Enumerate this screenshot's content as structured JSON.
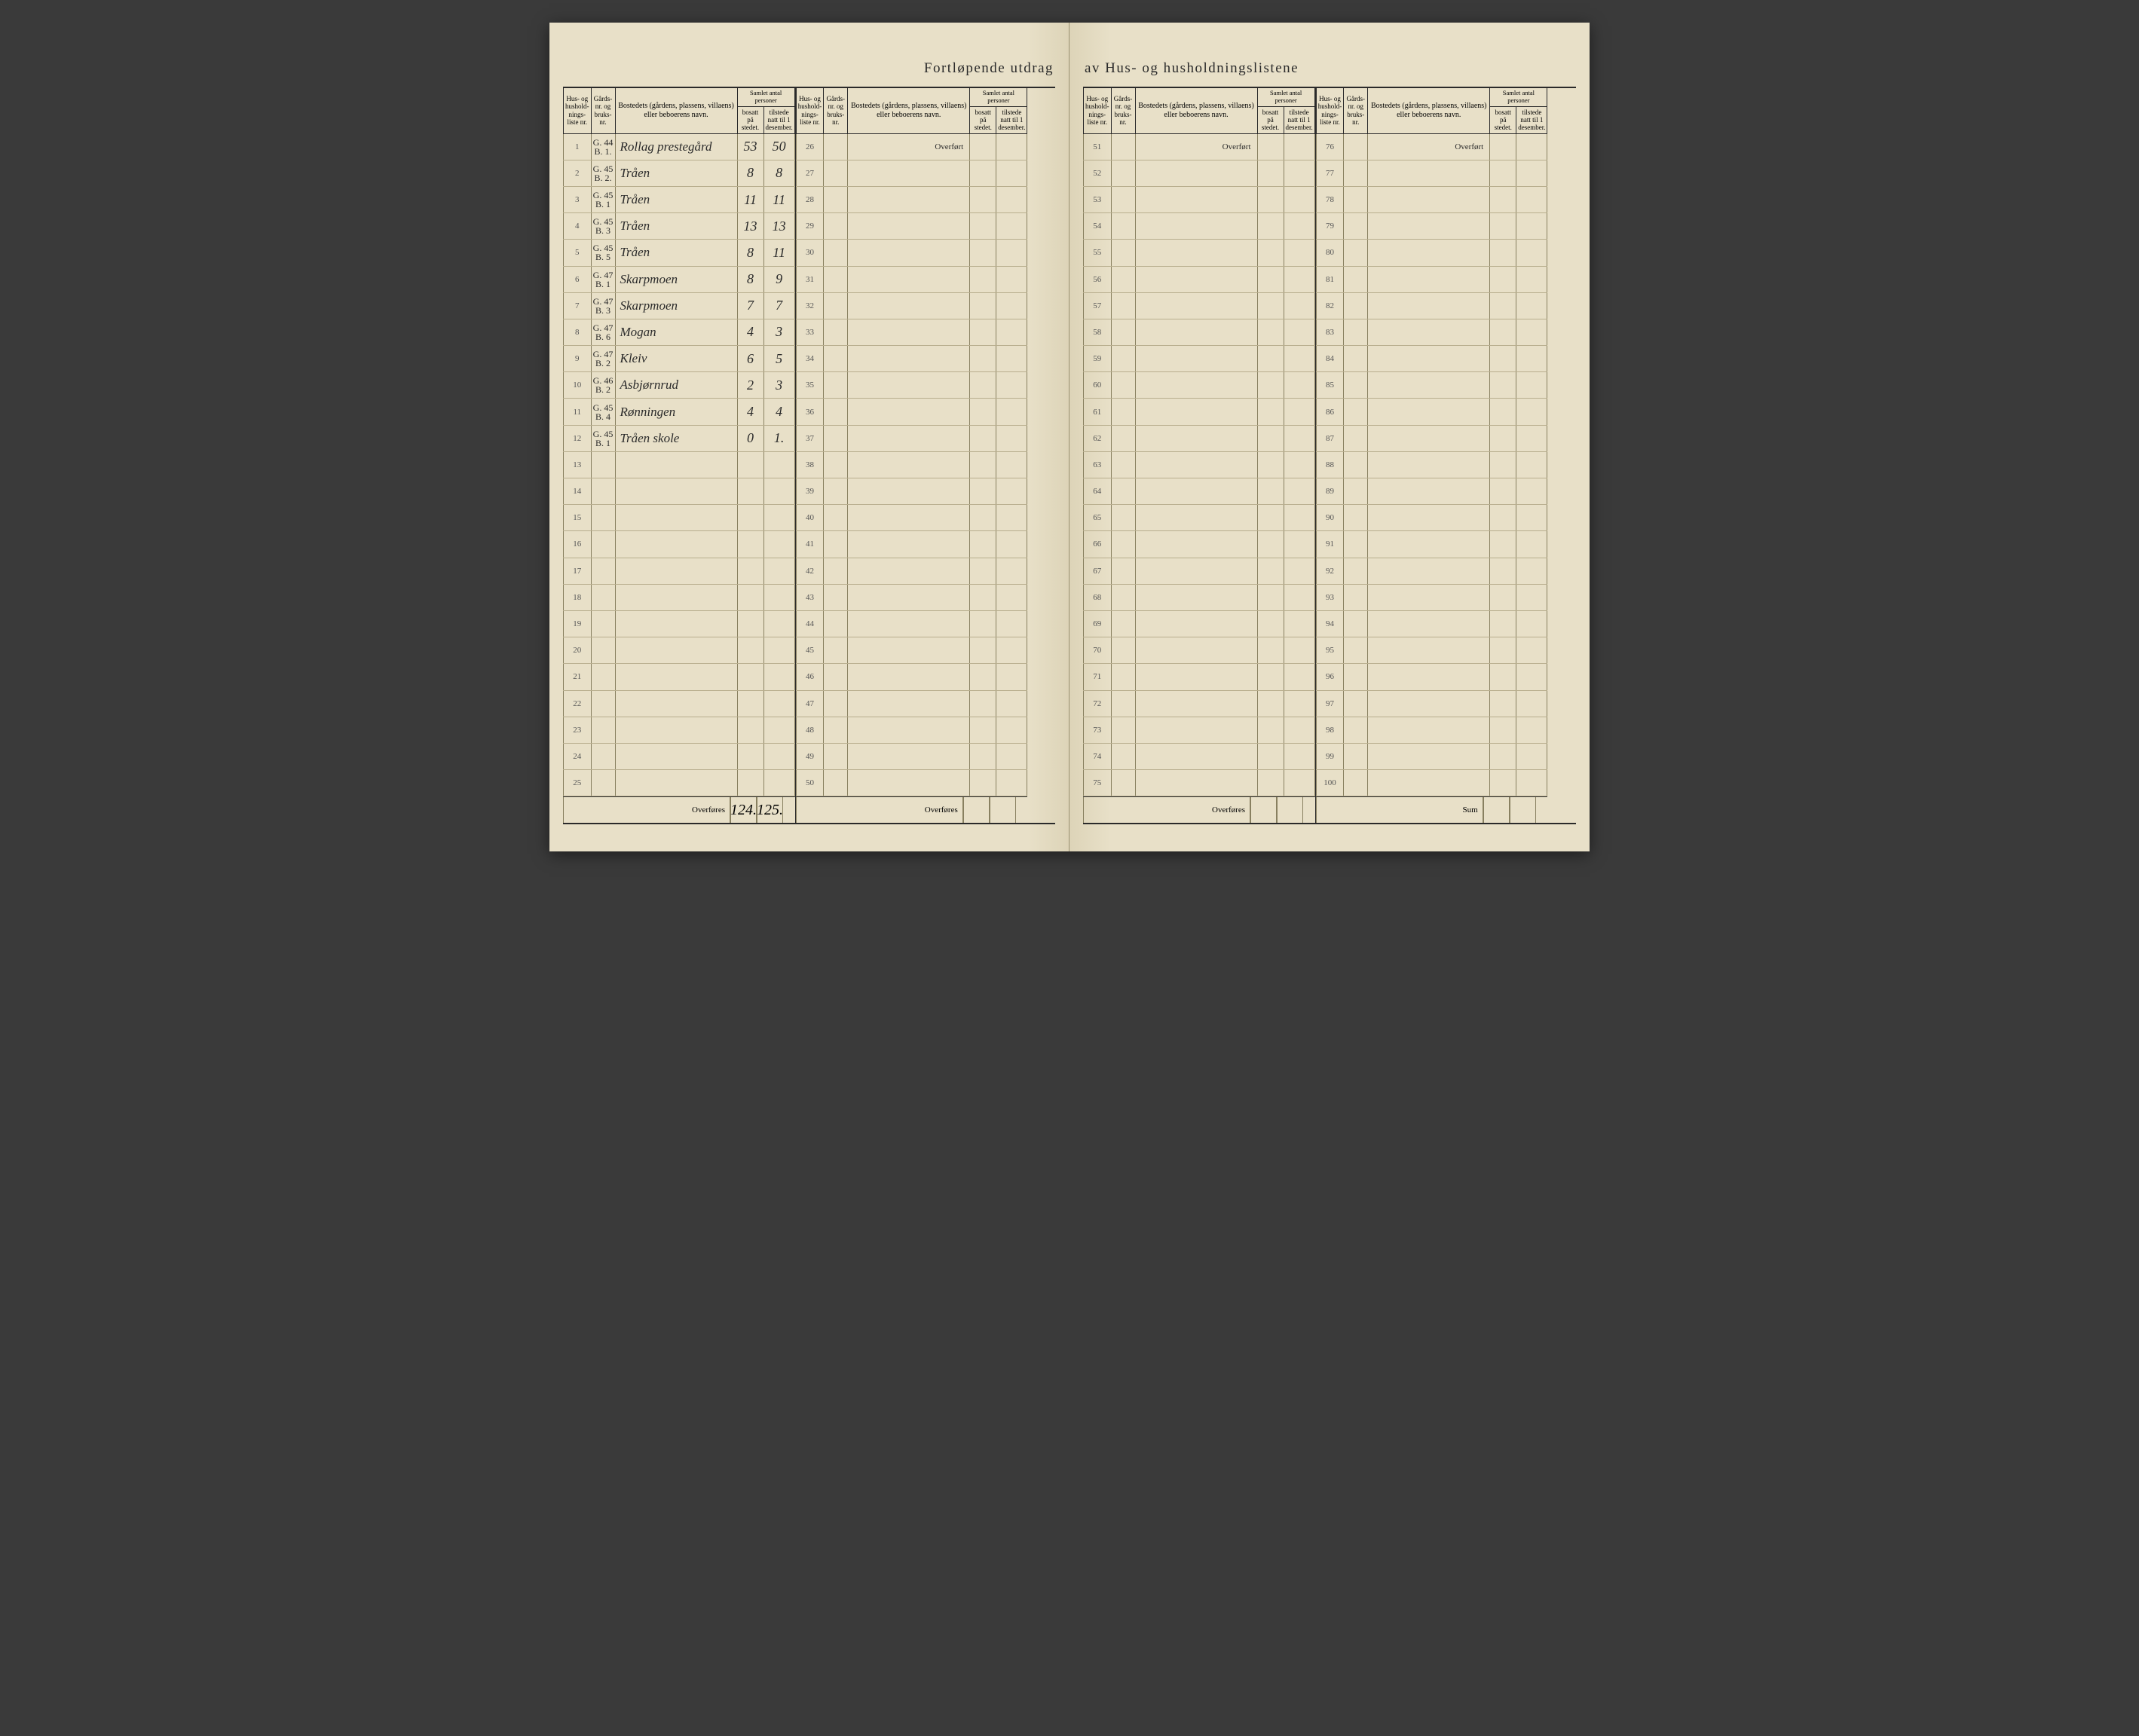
{
  "title_left": "Fortløpende utdrag",
  "title_right": "av Hus- og husholdningslistene",
  "headers": {
    "liste": "Hus- og hushold-nings-liste nr.",
    "gard": "Gårds-nr. og bruks-nr.",
    "navn": "Bostedets (gårdens, plassens, villaens) eller beboerens navn.",
    "samlet": "Samlet antal personer",
    "bosatt": "bosatt på stedet.",
    "tilstede": "tilstede natt til 1 desember."
  },
  "overfort": "Overført",
  "overfores": "Overføres",
  "sum": "Sum",
  "footer_totals": {
    "bosatt": "124.",
    "tilstede": "125."
  },
  "rows_1_25": [
    {
      "n": "1",
      "g": "G. 44\nB. 1.",
      "navn": "Rollag prestegård",
      "b": "53",
      "t": "50"
    },
    {
      "n": "2",
      "g": "G. 45\nB. 2.",
      "navn": "Tråen",
      "b": "8",
      "t": "8"
    },
    {
      "n": "3",
      "g": "G. 45\nB. 1",
      "navn": "Tråen",
      "b": "11",
      "t": "11"
    },
    {
      "n": "4",
      "g": "G. 45\nB. 3",
      "navn": "Tråen",
      "b": "13",
      "t": "13"
    },
    {
      "n": "5",
      "g": "G. 45\nB. 5",
      "navn": "Tråen",
      "b": "8",
      "t": "11"
    },
    {
      "n": "6",
      "g": "G. 47\nB. 1",
      "navn": "Skarpmoen",
      "b": "8",
      "t": "9"
    },
    {
      "n": "7",
      "g": "G. 47\nB. 3",
      "navn": "Skarpmoen",
      "b": "7",
      "t": "7"
    },
    {
      "n": "8",
      "g": "G. 47\nB. 6",
      "navn": "Mogan",
      "b": "4",
      "t": "3"
    },
    {
      "n": "9",
      "g": "G. 47\nB. 2",
      "navn": "Kleiv",
      "b": "6",
      "t": "5"
    },
    {
      "n": "10",
      "g": "G. 46\nB. 2",
      "navn": "Asbjørnrud",
      "b": "2",
      "t": "3"
    },
    {
      "n": "11",
      "g": "G. 45\nB. 4",
      "navn": "Rønningen",
      "b": "4",
      "t": "4"
    },
    {
      "n": "12",
      "g": "G. 45\nB. 1",
      "navn": "Tråen skole",
      "b": "0",
      "t": "1."
    },
    {
      "n": "13"
    },
    {
      "n": "14"
    },
    {
      "n": "15"
    },
    {
      "n": "16"
    },
    {
      "n": "17"
    },
    {
      "n": "18"
    },
    {
      "n": "19"
    },
    {
      "n": "20"
    },
    {
      "n": "21"
    },
    {
      "n": "22"
    },
    {
      "n": "23"
    },
    {
      "n": "24"
    },
    {
      "n": "25"
    }
  ],
  "ranges": {
    "b": [
      26,
      50
    ],
    "c": [
      51,
      75
    ],
    "d": [
      76,
      100
    ]
  },
  "colors": {
    "paper": "#e8e0c8",
    "ink": "#2a2a2a",
    "rule": "#888060",
    "faint_rule": "#b8ae8e"
  }
}
